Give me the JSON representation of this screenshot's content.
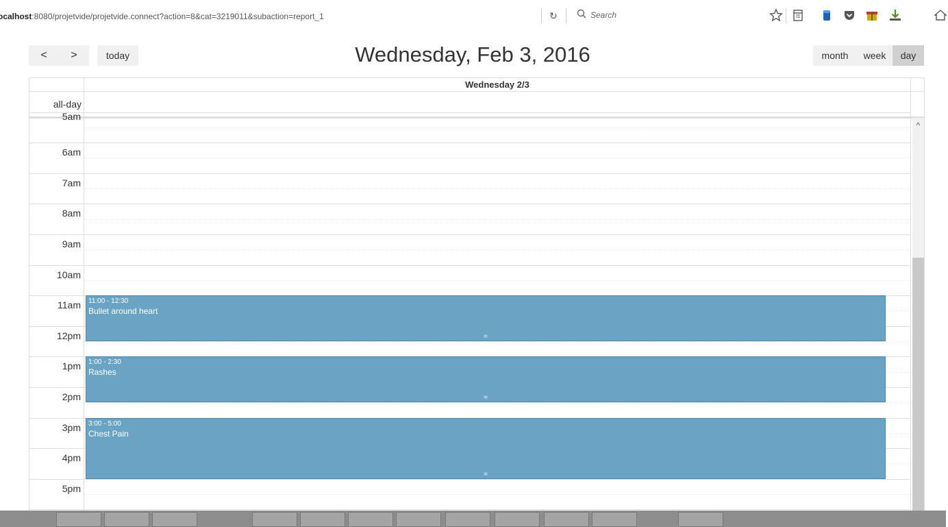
{
  "browser": {
    "url_prefix": "ocalhost",
    "url_rest": ":8080/projetvide/projetvide.connect?action=8&cat=3219011&subaction=report_1",
    "reload_icon": "reload-icon",
    "search_placeholder": "Search",
    "toolbar_icons": [
      "bookmark-star-icon",
      "reading-list-icon",
      "database-icon",
      "pocket-icon",
      "gift-icon",
      "download-icon",
      "home-icon"
    ]
  },
  "calendar": {
    "prev_label": "<",
    "next_label": ">",
    "today_label": "today",
    "title": "Wednesday, Feb 3, 2016",
    "views": {
      "month": "month",
      "week": "week",
      "day": "day",
      "active": "day"
    },
    "column_header": "Wednesday 2/3",
    "allday_label": "all-day",
    "partial_top_label": "5am",
    "hours": [
      "6am",
      "7am",
      "8am",
      "9am",
      "10am",
      "11am",
      "12pm",
      "1pm",
      "2pm",
      "3pm",
      "4pm",
      "5pm"
    ],
    "first_hour": 5,
    "events": [
      {
        "time": "11:00 - 12:30",
        "title": "Bullet around heart",
        "start": 11.0,
        "end": 12.5
      },
      {
        "time": "1:00 - 2:30",
        "title": "Rashes",
        "start": 13.0,
        "end": 14.5
      },
      {
        "time": "3:00 - 5:00",
        "title": "Chest Pain",
        "start": 15.0,
        "end": 17.0
      }
    ],
    "event_color": "#6aa4c4",
    "resize_handle": "="
  }
}
